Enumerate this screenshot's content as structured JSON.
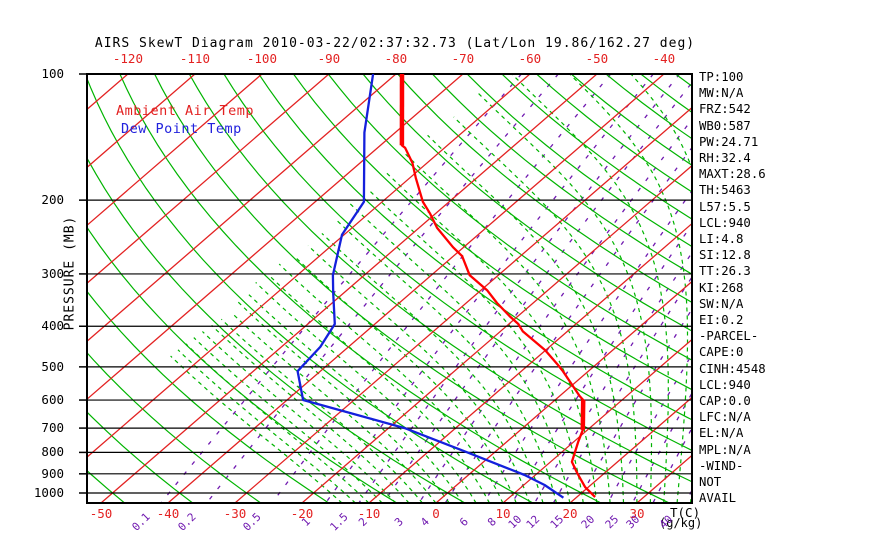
{
  "title": "AIRS SkewT Diagram 2010-03-22/02:37:32.73 (Lat/Lon 19.86/162.27 deg)",
  "legend": {
    "temperature": "Ambient Air Temp",
    "dewpoint": "Dew Point Temp"
  },
  "axes": {
    "pressure_label": "PRESSURE (MB)",
    "temp_label": "T(C)",
    "mixing_label": "(g/kg)"
  },
  "stats_panel": [
    "TP:100",
    "MW:N/A",
    "FRZ:542",
    "WB0:587",
    "PW:24.71",
    "RH:32.4",
    "MAXT:28.6",
    "TH:5463",
    "L57:5.5",
    "LCL:940",
    "LI:4.8",
    "SI:12.8",
    "TT:26.3",
    "KI:268",
    "SW:N/A",
    "EI:0.2",
    "-PARCEL-",
    "CAPE:0",
    "CINH:4548",
    "LCL:940",
    "CAP:0.0",
    "LFC:N/A",
    "EL:N/A",
    "MPL:N/A",
    "-WIND-",
    "NOT",
    "AVAIL"
  ],
  "colors": {
    "isotherm": "#e32222",
    "dry_adiabat": "#00b400",
    "moist_adiabat": "#00b400",
    "mixing_ratio": "#7019b0",
    "temperature_profile": "#ff0000",
    "dewpoint_profile": "#1420dc",
    "axis": "#000000",
    "temp_tick_label": "#e32222",
    "mixing_tick_label": "#7019b0",
    "legend_temp": "#e32222",
    "legend_dew": "#2222dd"
  },
  "chart_data": {
    "type": "line",
    "subtype": "skewt-log-p",
    "title": "AIRS SkewT Diagram 2010-03-22/02:37:32.73 (Lat/Lon 19.86/162.27 deg)",
    "xlabel": "T(C)",
    "ylabel": "PRESSURE (MB)",
    "pressure_range_mb": [
      100,
      1057
    ],
    "pressure_ticks_mb": [
      100,
      200,
      300,
      400,
      500,
      600,
      700,
      800,
      900,
      1000
    ],
    "bottom_temp_ticks_c": [
      -50,
      -40,
      -30,
      -20,
      -10,
      0,
      10,
      20,
      30
    ],
    "top_temp_ticks_c": [
      -120,
      -110,
      -100,
      -90,
      -80,
      -70,
      -60,
      -50,
      -40
    ],
    "isotherms_c": {
      "min": -150,
      "max": 40,
      "step": 10
    },
    "dry_adiabats_theta_c": {
      "min": -60,
      "max": 190,
      "step": 10
    },
    "moist_adiabats_surface_t_c": {
      "min": -14,
      "max": 40,
      "step": 2,
      "clip_below_t_c": -65
    },
    "mixing_ratio_lines_gkg": [
      0.1,
      0.2,
      0.5,
      1,
      1.5,
      2,
      3,
      4,
      6,
      8,
      10,
      12,
      15,
      20,
      25,
      30,
      40
    ],
    "series": [
      {
        "name": "Ambient Air Temp",
        "points_p_t": [
          [
            100,
            -79.1
          ],
          [
            148,
            -66.8
          ],
          [
            150,
            -65.9
          ],
          [
            163,
            -62.2
          ],
          [
            177,
            -59.1
          ],
          [
            202,
            -53.9
          ],
          [
            215,
            -50.9
          ],
          [
            233,
            -47.3
          ],
          [
            259,
            -41.6
          ],
          [
            272,
            -38.7
          ],
          [
            302,
            -34.3
          ],
          [
            328,
            -29.1
          ],
          [
            352,
            -25.4
          ],
          [
            380,
            -21.0
          ],
          [
            395,
            -18.6
          ],
          [
            411,
            -16.7
          ],
          [
            456,
            -10.1
          ],
          [
            495,
            -5.6
          ],
          [
            512,
            -3.8
          ],
          [
            587,
            3.0
          ],
          [
            600,
            4.2
          ],
          [
            707,
            9.3
          ],
          [
            756,
            10.7
          ],
          [
            843,
            13.2
          ],
          [
            896,
            15.9
          ],
          [
            968,
            19.5
          ],
          [
            1022,
            22.7
          ]
        ],
        "thick_segment_indices": [
          [
            0,
            1
          ],
          [
            20,
            21
          ]
        ]
      },
      {
        "name": "Dew Point Temp",
        "points_p_t": [
          [
            100,
            -83.4
          ],
          [
            138,
            -74.6
          ],
          [
            202,
            -62.7
          ],
          [
            242,
            -60.3
          ],
          [
            302,
            -54.7
          ],
          [
            333,
            -51.6
          ],
          [
            395,
            -46.0
          ],
          [
            448,
            -44.2
          ],
          [
            512,
            -43.4
          ],
          [
            600,
            -37.6
          ],
          [
            700,
            -17.6
          ],
          [
            798,
            -4.3
          ],
          [
            906,
            8.4
          ],
          [
            957,
            13.1
          ],
          [
            1026,
            18.1
          ]
        ],
        "thick_segment_indices": []
      }
    ],
    "legend_position": "top-left-inside",
    "grid": "pressure-lines-horizontal"
  }
}
